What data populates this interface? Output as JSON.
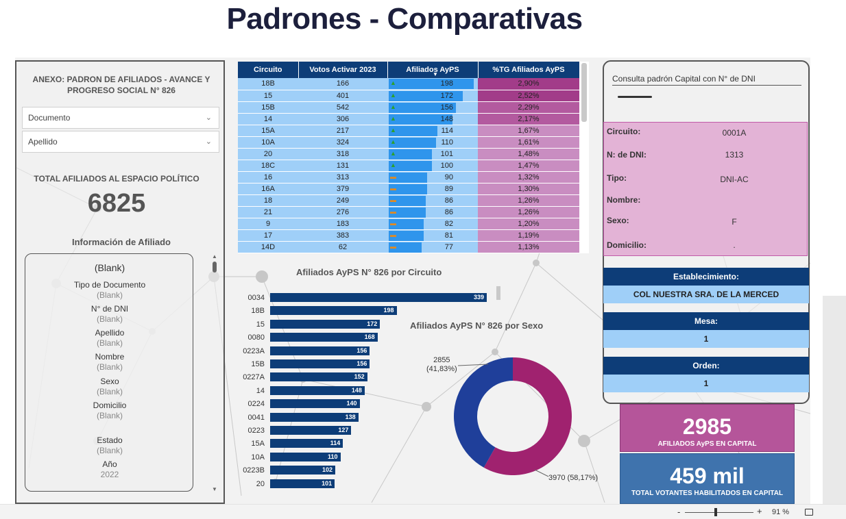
{
  "page_title": "Padrones - Comparativas",
  "left_panel": {
    "heading": "ANEXO: PADRON DE AFILIADOS - AVANCE Y PROGRESO SOCIAL N° 826",
    "dropdown_documento": "Documento",
    "dropdown_apellido": "Apellido",
    "total_label": "TOTAL AFILIADOS AL ESPACIO POLÍTICO",
    "total_value": "6825",
    "info_title": "Información de Afiliado",
    "card": {
      "header": "(Blank)",
      "fields": [
        {
          "label": "Tipo de Documento",
          "value": "(Blank)"
        },
        {
          "label": "N° de DNI",
          "value": "(Blank)"
        },
        {
          "label": "Apellido",
          "value": "(Blank)"
        },
        {
          "label": "Nombre",
          "value": "(Blank)"
        },
        {
          "label": "Sexo",
          "value": "(Blank)"
        },
        {
          "label": "Domicilio",
          "value": "(Blank)"
        },
        {
          "label": "Estado",
          "value": "(Blank)"
        },
        {
          "label": "Año",
          "value": "2022"
        }
      ]
    }
  },
  "table": {
    "headers": [
      "Circuito",
      "Votos Activar 2023",
      "Afiliados AyPS",
      "%TG Afiliados AyPS"
    ],
    "sort_indicator": "▼",
    "rows": [
      {
        "circuito": "18B",
        "votos": "166",
        "afiliados": 198,
        "pct": "2,90%",
        "ind": "up",
        "tone": "hi"
      },
      {
        "circuito": "15",
        "votos": "401",
        "afiliados": 172,
        "pct": "2,52%",
        "ind": "up",
        "tone": "hi"
      },
      {
        "circuito": "15B",
        "votos": "542",
        "afiliados": 156,
        "pct": "2,29%",
        "ind": "up",
        "tone": "mid"
      },
      {
        "circuito": "14",
        "votos": "306",
        "afiliados": 148,
        "pct": "2,17%",
        "ind": "up",
        "tone": "mid"
      },
      {
        "circuito": "15A",
        "votos": "217",
        "afiliados": 114,
        "pct": "1,67%",
        "ind": "up",
        "tone": ""
      },
      {
        "circuito": "10A",
        "votos": "324",
        "afiliados": 110,
        "pct": "1,61%",
        "ind": "up",
        "tone": ""
      },
      {
        "circuito": "20",
        "votos": "318",
        "afiliados": 101,
        "pct": "1,48%",
        "ind": "up",
        "tone": ""
      },
      {
        "circuito": "18C",
        "votos": "131",
        "afiliados": 100,
        "pct": "1,47%",
        "ind": "up",
        "tone": ""
      },
      {
        "circuito": "16",
        "votos": "313",
        "afiliados": 90,
        "pct": "1,32%",
        "ind": "mid",
        "tone": ""
      },
      {
        "circuito": "16A",
        "votos": "379",
        "afiliados": 89,
        "pct": "1,30%",
        "ind": "mid",
        "tone": ""
      },
      {
        "circuito": "18",
        "votos": "249",
        "afiliados": 86,
        "pct": "1,26%",
        "ind": "mid",
        "tone": ""
      },
      {
        "circuito": "21",
        "votos": "276",
        "afiliados": 86,
        "pct": "1,26%",
        "ind": "mid",
        "tone": ""
      },
      {
        "circuito": "9",
        "votos": "183",
        "afiliados": 82,
        "pct": "1,20%",
        "ind": "mid",
        "tone": ""
      },
      {
        "circuito": "17",
        "votos": "383",
        "afiliados": 81,
        "pct": "1,19%",
        "ind": "mid",
        "tone": ""
      },
      {
        "circuito": "14D",
        "votos": "62",
        "afiliados": 77,
        "pct": "1,13%",
        "ind": "mid",
        "tone": ""
      }
    ]
  },
  "chart_data": [
    {
      "type": "bar",
      "orientation": "horizontal",
      "title": "Afiliados AyPS N° 826 por Circuito",
      "categories": [
        "0034",
        "18B",
        "15",
        "0080",
        "0223A",
        "15B",
        "0227A",
        "14",
        "0224",
        "0041",
        "0223",
        "15A",
        "10A",
        "0223B",
        "20"
      ],
      "values": [
        339,
        198,
        172,
        168,
        156,
        156,
        152,
        148,
        140,
        138,
        127,
        114,
        110,
        102,
        101
      ],
      "xlim": [
        0,
        339
      ],
      "color": "#0d3d78"
    },
    {
      "type": "pie",
      "variant": "donut",
      "title": "Afiliados AyPS N° 826 por Sexo",
      "slices": [
        {
          "value": 2855,
          "label": "2855",
          "pct_label": "(41,83%)",
          "color": "#1f3f9a"
        },
        {
          "value": 3970,
          "label": "3970 (58,17%)",
          "color": "#a0226f"
        }
      ]
    }
  ],
  "right_panel": {
    "title": "Consulta padrón Capital con N° de DNI",
    "details": [
      {
        "label": "Circuito:",
        "value": "0001A"
      },
      {
        "label": "N: de DNI:",
        "value": "1313"
      },
      {
        "label": "Tipo:",
        "value": "DNI-AC"
      },
      {
        "label": "Nombre:",
        "value": ""
      },
      {
        "label": "Sexo:",
        "value": "F"
      },
      {
        "label": "Domicilio:",
        "value": "."
      }
    ],
    "establecimiento_label": "Establecimiento:",
    "establecimiento_value": "COL NUESTRA SRA. DE LA MERCED",
    "mesa_label": "Mesa:",
    "mesa_value": "1",
    "orden_label": "Orden:",
    "orden_value": "1"
  },
  "kpis": {
    "afiliados_value": "2985",
    "afiliados_label": "AFILIADOS AyPS EN CAPITAL",
    "votantes_value": "459 mil",
    "votantes_label": "TOTAL VOTANTES HABILITADOS EN CAPITAL"
  },
  "statusbar": {
    "zoom_minus": "-",
    "zoom_plus": "+",
    "zoom_level": "91 %"
  },
  "colors": {
    "navy": "#0d3d78",
    "light_blue": "#9fcff8",
    "magenta": "#b5559a",
    "steel_blue": "#3f73ad"
  }
}
